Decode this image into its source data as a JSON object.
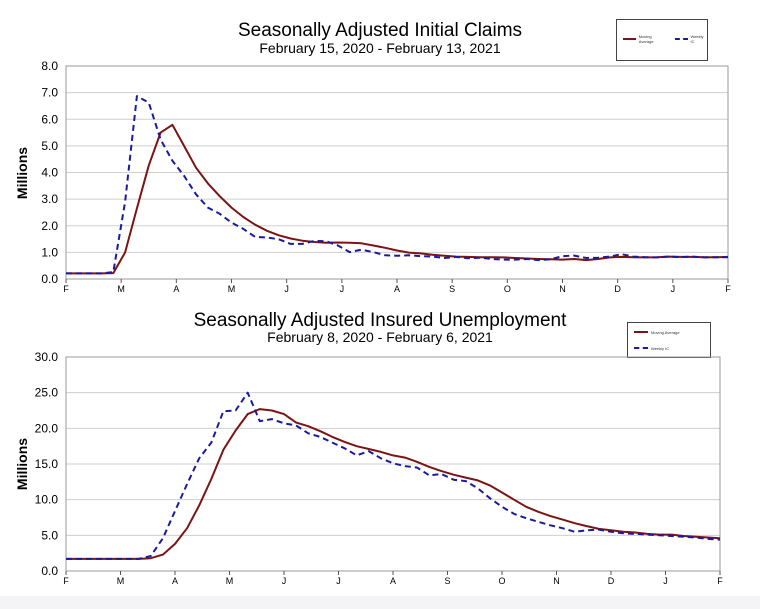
{
  "chart_data": [
    {
      "type": "line",
      "title": "Seasonally Adjusted Initial Claims",
      "subtitle": "February 15, 2020 - February 13, 2021",
      "ylabel": "Millions",
      "ylim": [
        0,
        8
      ],
      "yticks": [
        "0.0",
        "1.0",
        "2.0",
        "3.0",
        "4.0",
        "5.0",
        "6.0",
        "7.0",
        "8.0"
      ],
      "xticks": [
        "F",
        "M",
        "A",
        "M",
        "J",
        "J",
        "A",
        "S",
        "O",
        "N",
        "D",
        "J",
        "F"
      ],
      "grid": true,
      "legend": "top-right",
      "series": [
        {
          "name": "Moving Average",
          "color": "#7b1414",
          "style": "solid",
          "values": [
            0.21,
            0.21,
            0.21,
            0.21,
            0.22,
            1.0,
            2.65,
            4.27,
            5.5,
            5.79,
            4.99,
            4.18,
            3.59,
            3.11,
            2.68,
            2.33,
            2.04,
            1.81,
            1.64,
            1.52,
            1.44,
            1.39,
            1.36,
            1.37,
            1.36,
            1.34,
            1.26,
            1.17,
            1.07,
            0.99,
            0.96,
            0.91,
            0.87,
            0.84,
            0.83,
            0.82,
            0.82,
            0.81,
            0.79,
            0.77,
            0.75,
            0.74,
            0.73,
            0.75,
            0.71,
            0.75,
            0.81,
            0.83,
            0.82,
            0.81,
            0.82,
            0.84,
            0.83,
            0.83,
            0.82,
            0.82,
            0.83
          ]
        },
        {
          "name": "Weekly IC",
          "color": "#1a1a9e",
          "style": "dashed",
          "values": [
            0.21,
            0.21,
            0.21,
            0.21,
            0.26,
            2.9,
            6.87,
            6.62,
            5.24,
            4.44,
            3.87,
            3.18,
            2.68,
            2.45,
            2.12,
            1.88,
            1.58,
            1.56,
            1.49,
            1.32,
            1.32,
            1.43,
            1.42,
            1.26,
            1.01,
            1.1,
            1.01,
            0.89,
            0.87,
            0.89,
            0.86,
            0.84,
            0.79,
            0.83,
            0.78,
            0.8,
            0.75,
            0.73,
            0.73,
            0.75,
            0.71,
            0.74,
            0.86,
            0.88,
            0.79,
            0.8,
            0.84,
            0.93,
            0.84,
            0.82,
            0.81,
            0.84,
            0.82,
            0.84,
            0.81,
            0.82,
            0.82
          ]
        }
      ]
    },
    {
      "type": "line",
      "title": "Seasonally Adjusted Insured Unemployment",
      "subtitle": "February 8, 2020 - February 6, 2021",
      "ylabel": "Millions",
      "ylim": [
        0,
        30
      ],
      "yticks": [
        "0.0",
        "5.0",
        "10.0",
        "15.0",
        "20.0",
        "25.0",
        "30.0"
      ],
      "xticks": [
        "F",
        "M",
        "A",
        "M",
        "J",
        "J",
        "A",
        "S",
        "O",
        "N",
        "D",
        "J",
        "F"
      ],
      "grid": true,
      "legend": "top-right",
      "series": [
        {
          "name": "Moving Average",
          "color": "#7b1414",
          "style": "solid",
          "values": [
            1.7,
            1.7,
            1.7,
            1.7,
            1.7,
            1.7,
            1.7,
            1.8,
            2.3,
            3.8,
            6.0,
            9.2,
            12.9,
            17.0,
            19.7,
            22.0,
            22.7,
            22.5,
            22.0,
            20.8,
            20.3,
            19.6,
            18.8,
            18.1,
            17.5,
            17.1,
            16.7,
            16.2,
            15.9,
            15.3,
            14.6,
            14.0,
            13.5,
            13.1,
            12.7,
            12.0,
            11.0,
            10.0,
            9.0,
            8.3,
            7.7,
            7.2,
            6.7,
            6.3,
            5.9,
            5.7,
            5.5,
            5.4,
            5.2,
            5.1,
            5.1,
            4.9,
            4.8,
            4.7,
            4.6
          ]
        },
        {
          "name": "Weekly IC",
          "color": "#1a1a9e",
          "style": "dashed",
          "values": [
            1.7,
            1.7,
            1.7,
            1.7,
            1.7,
            1.7,
            1.7,
            2.1,
            4.6,
            8.4,
            12.2,
            15.8,
            18.0,
            22.4,
            22.5,
            25.0,
            21.0,
            21.3,
            20.7,
            20.4,
            19.3,
            18.8,
            18.0,
            17.2,
            16.2,
            16.8,
            15.8,
            15.1,
            14.7,
            14.5,
            13.4,
            13.6,
            12.8,
            12.6,
            11.6,
            10.2,
            9.0,
            8.0,
            7.4,
            6.9,
            6.4,
            6.0,
            5.5,
            5.7,
            5.8,
            5.5,
            5.3,
            5.2,
            5.1,
            5.0,
            4.9,
            4.8,
            4.7,
            4.5,
            4.4
          ]
        }
      ]
    }
  ]
}
